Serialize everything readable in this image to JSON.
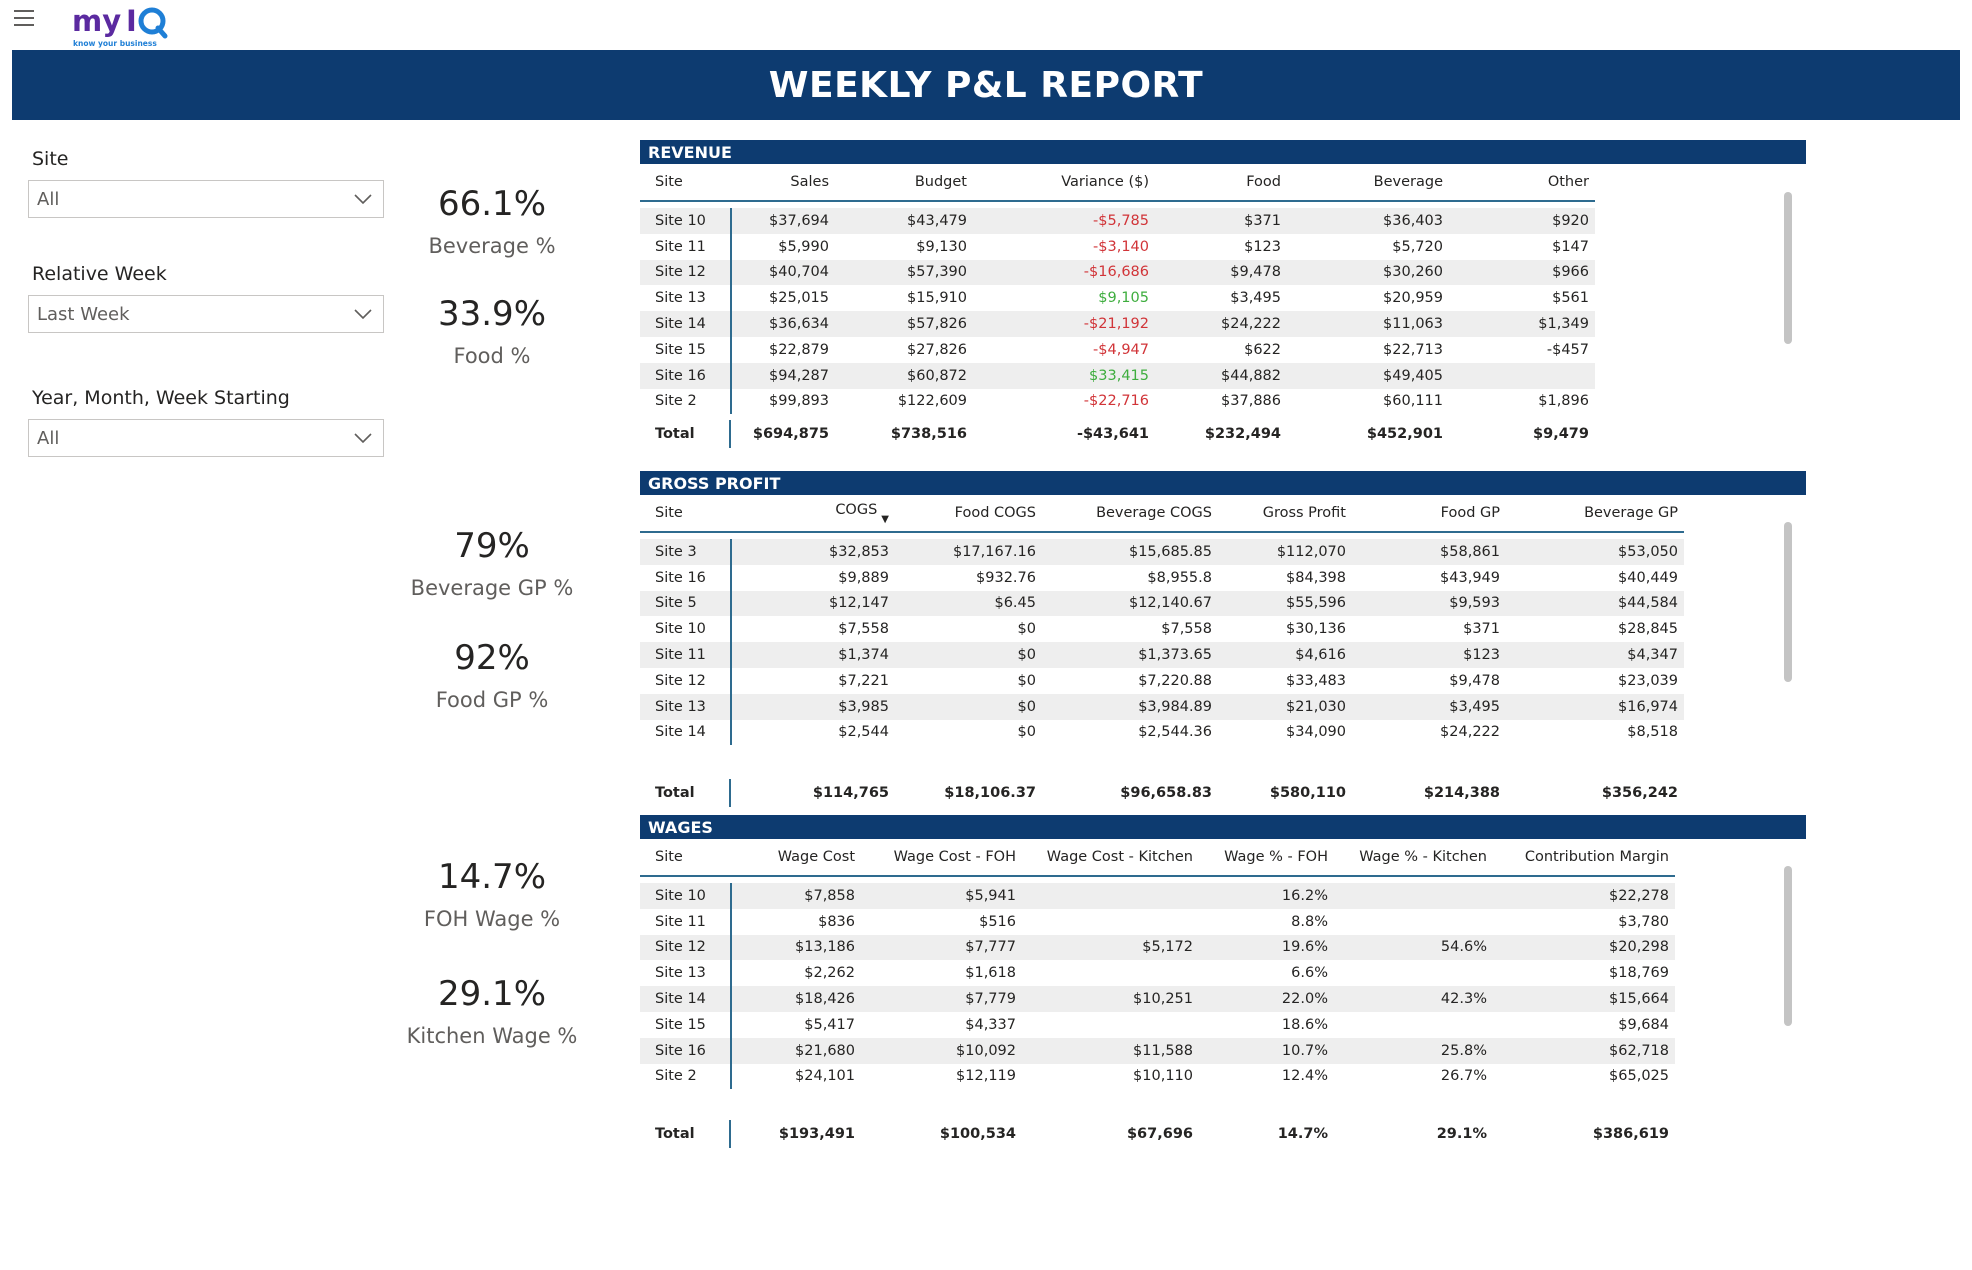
{
  "app": {
    "brand": "myIQ",
    "tagline": "know your business",
    "report_title": "WEEKLY P&L REPORT"
  },
  "slicers": [
    {
      "label": "Site",
      "value": "All"
    },
    {
      "label": "Relative Week",
      "value": "Last Week"
    },
    {
      "label": "Year, Month, Week Starting",
      "value": "All"
    }
  ],
  "kpis": {
    "beverage_pct": {
      "value": "66.1%",
      "label": "Beverage %"
    },
    "food_pct": {
      "value": "33.9%",
      "label": "Food %"
    },
    "beverage_gp_pct": {
      "value": "79%",
      "label": "Beverage GP %"
    },
    "food_gp_pct": {
      "value": "92%",
      "label": "Food GP %"
    },
    "foh_wage_pct": {
      "value": "14.7%",
      "label": "FOH Wage %"
    },
    "kitchen_wage_pct": {
      "value": "29.1%",
      "label": "Kitchen Wage %"
    }
  },
  "revenue": {
    "title": "REVENUE",
    "columns": [
      "Site",
      "Sales",
      "Budget",
      "Variance ($)",
      "Food",
      "Beverage",
      "Other"
    ],
    "rows": [
      [
        "Site 10",
        "$37,694",
        "$43,479",
        "-$5,785",
        "$371",
        "$36,403",
        "$920"
      ],
      [
        "Site 11",
        "$5,990",
        "$9,130",
        "-$3,140",
        "$123",
        "$5,720",
        "$147"
      ],
      [
        "Site 12",
        "$40,704",
        "$57,390",
        "-$16,686",
        "$9,478",
        "$30,260",
        "$966"
      ],
      [
        "Site 13",
        "$25,015",
        "$15,910",
        "$9,105",
        "$3,495",
        "$20,959",
        "$561"
      ],
      [
        "Site 14",
        "$36,634",
        "$57,826",
        "-$21,192",
        "$24,222",
        "$11,063",
        "$1,349"
      ],
      [
        "Site 15",
        "$22,879",
        "$27,826",
        "-$4,947",
        "$622",
        "$22,713",
        "-$457"
      ],
      [
        "Site 16",
        "$94,287",
        "$60,872",
        "$33,415",
        "$44,882",
        "$49,405",
        ""
      ],
      [
        "Site 2",
        "$99,893",
        "$122,609",
        "-$22,716",
        "$37,886",
        "$60,111",
        "$1,896"
      ]
    ],
    "total": [
      "Total",
      "$694,875",
      "$738,516",
      "-$43,641",
      "$232,494",
      "$452,901",
      "$9,479"
    ]
  },
  "gross_profit": {
    "title": "GROSS PROFIT",
    "columns": [
      "Site",
      "COGS",
      "Food COGS",
      "Beverage COGS",
      "Gross Profit",
      "Food GP",
      "Beverage GP"
    ],
    "rows": [
      [
        "Site 3",
        "$32,853",
        "$17,167.16",
        "$15,685.85",
        "$112,070",
        "$58,861",
        "$53,050"
      ],
      [
        "Site 16",
        "$9,889",
        "$932.76",
        "$8,955.8",
        "$84,398",
        "$43,949",
        "$40,449"
      ],
      [
        "Site 5",
        "$12,147",
        "$6.45",
        "$12,140.67",
        "$55,596",
        "$9,593",
        "$44,584"
      ],
      [
        "Site 10",
        "$7,558",
        "$0",
        "$7,558",
        "$30,136",
        "$371",
        "$28,845"
      ],
      [
        "Site 11",
        "$1,374",
        "$0",
        "$1,373.65",
        "$4,616",
        "$123",
        "$4,347"
      ],
      [
        "Site 12",
        "$7,221",
        "$0",
        "$7,220.88",
        "$33,483",
        "$9,478",
        "$23,039"
      ],
      [
        "Site 13",
        "$3,985",
        "$0",
        "$3,984.89",
        "$21,030",
        "$3,495",
        "$16,974"
      ],
      [
        "Site 14",
        "$2,544",
        "$0",
        "$2,544.36",
        "$34,090",
        "$24,222",
        "$8,518"
      ]
    ],
    "total": [
      "Total",
      "$114,765",
      "$18,106.37",
      "$96,658.83",
      "$580,110",
      "$214,388",
      "$356,242"
    ]
  },
  "wages": {
    "title": "WAGES",
    "columns": [
      "Site",
      "Wage Cost",
      "Wage Cost - FOH",
      "Wage Cost - Kitchen",
      "Wage % - FOH",
      "Wage % - Kitchen",
      "Contribution Margin"
    ],
    "rows": [
      [
        "Site 10",
        "$7,858",
        "$5,941",
        "",
        "16.2%",
        "",
        "$22,278"
      ],
      [
        "Site 11",
        "$836",
        "$516",
        "",
        "8.8%",
        "",
        "$3,780"
      ],
      [
        "Site 12",
        "$13,186",
        "$7,777",
        "$5,172",
        "19.6%",
        "54.6%",
        "$20,298"
      ],
      [
        "Site 13",
        "$2,262",
        "$1,618",
        "",
        "6.6%",
        "",
        "$18,769"
      ],
      [
        "Site 14",
        "$18,426",
        "$7,779",
        "$10,251",
        "22.0%",
        "42.3%",
        "$15,664"
      ],
      [
        "Site 15",
        "$5,417",
        "$4,337",
        "",
        "18.6%",
        "",
        "$9,684"
      ],
      [
        "Site 16",
        "$21,680",
        "$10,092",
        "$11,588",
        "10.7%",
        "25.8%",
        "$62,718"
      ],
      [
        "Site 2",
        "$24,101",
        "$12,119",
        "$10,110",
        "12.4%",
        "26.7%",
        "$65,025"
      ]
    ],
    "total": [
      "Total",
      "$193,491",
      "$100,534",
      "$67,696",
      "14.7%",
      "29.1%",
      "$386,619"
    ]
  },
  "colors": {
    "banner": "#0d3b70",
    "negative": "#d13438",
    "positive": "#3ead3e",
    "brand_purple": "#5b2aa0",
    "brand_blue": "#1f7fd6"
  }
}
